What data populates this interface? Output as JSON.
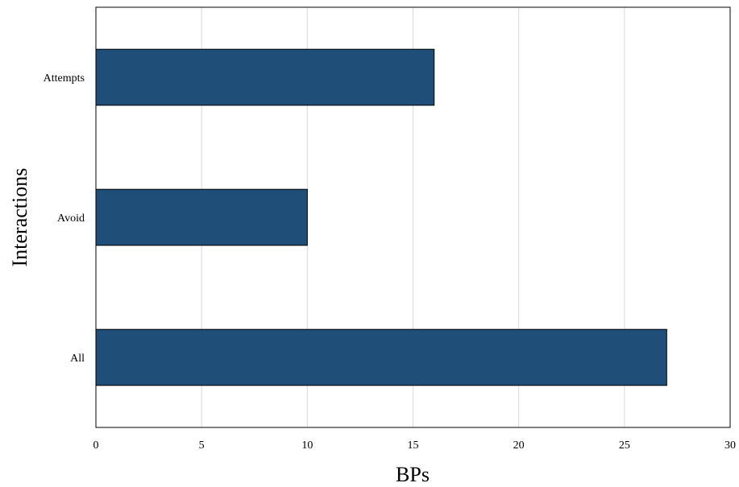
{
  "chart_data": {
    "type": "bar",
    "orientation": "horizontal",
    "categories": [
      "Attempts",
      "Avoid",
      "All"
    ],
    "values": [
      16,
      10,
      27
    ],
    "xlabel": "BPs",
    "ylabel": "Interactions",
    "xlim": [
      0,
      30
    ],
    "xticks": [
      "0",
      "5",
      "10",
      "15",
      "20",
      "25",
      "30"
    ],
    "grid": "vertical",
    "bar_color": "#1f4e79",
    "bar_edge_color": "#000000"
  }
}
